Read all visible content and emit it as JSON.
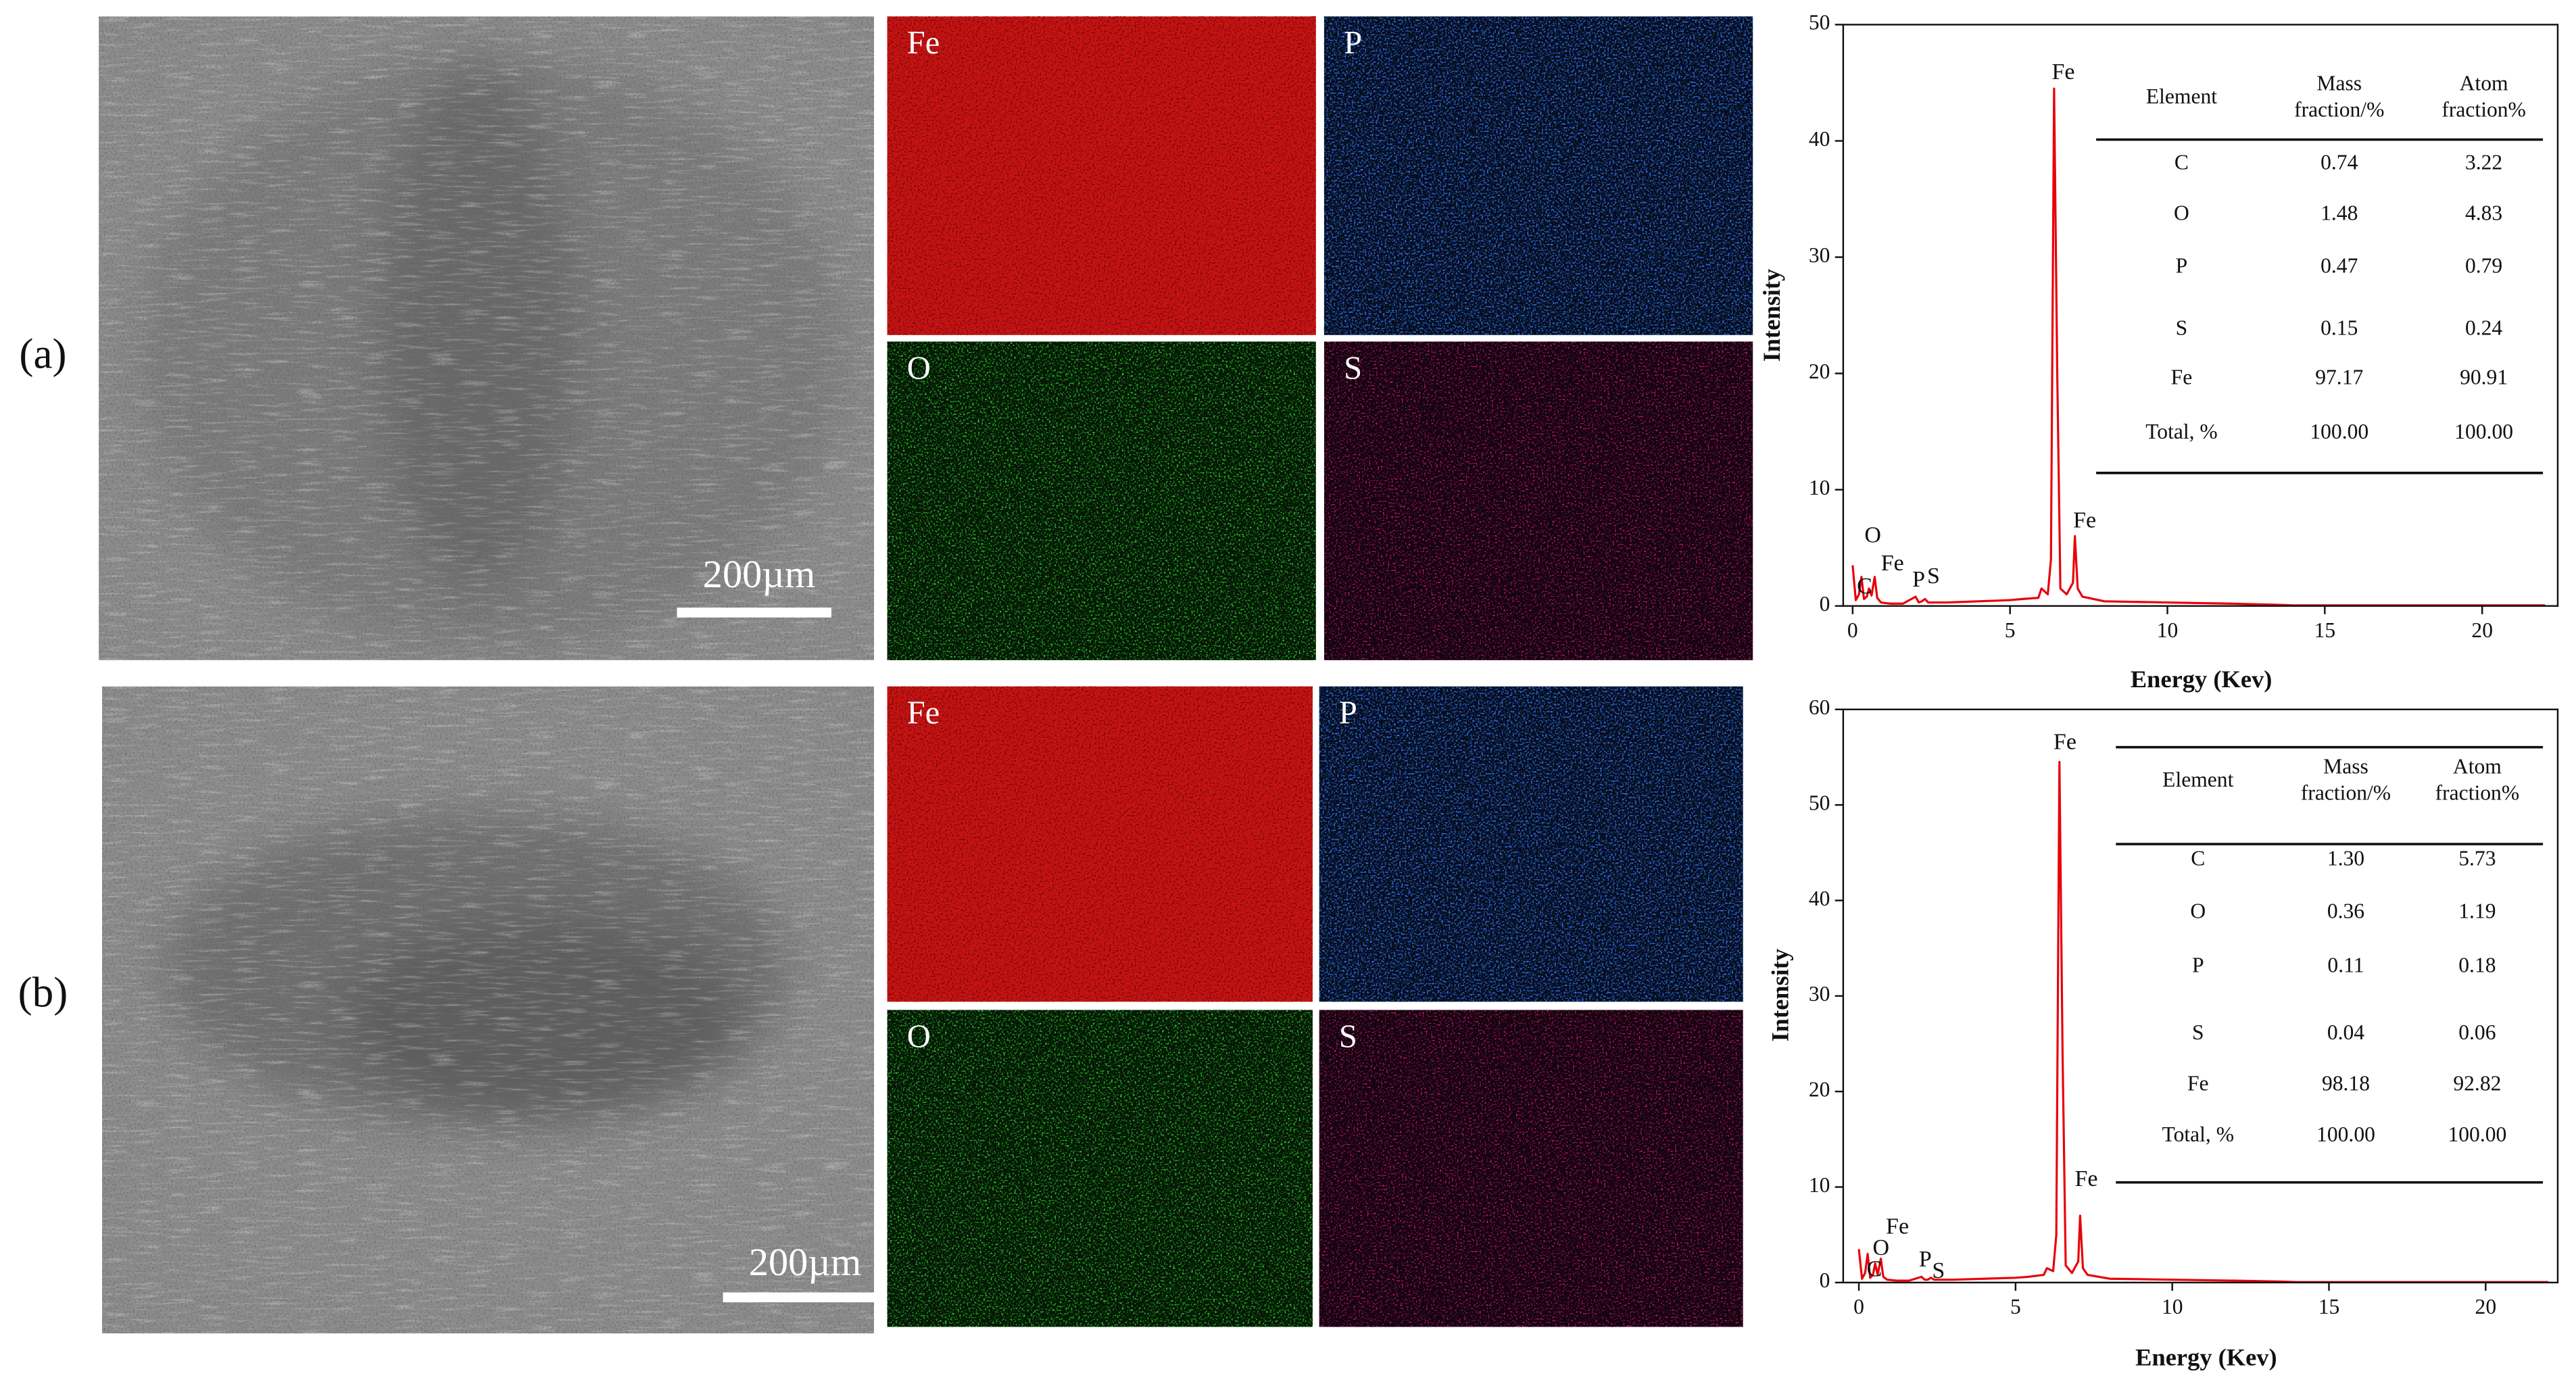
{
  "panels": [
    {
      "label": "(a)",
      "scale_bar": "200µm",
      "maps": [
        "Fe",
        "P",
        "O",
        "S"
      ]
    },
    {
      "label": "(b)",
      "scale_bar": "200µm",
      "maps": [
        "Fe",
        "P",
        "O",
        "S"
      ]
    }
  ],
  "chart_data": [
    {
      "type": "line",
      "x_label": "Energy (Kev)",
      "y_label": "Intensity",
      "xlim": [
        -0.3,
        22.4
      ],
      "ylim": [
        0,
        50
      ],
      "xticks": [
        0,
        5,
        10,
        15,
        20
      ],
      "yticks": [
        0,
        10,
        20,
        30,
        40,
        50
      ],
      "x": [
        0,
        0.1,
        0.2,
        0.28,
        0.36,
        0.45,
        0.52,
        0.6,
        0.7,
        0.78,
        0.9,
        1.2,
        1.6,
        2.0,
        2.1,
        2.2,
        2.3,
        2.4,
        2.6,
        3.0,
        4.0,
        5.0,
        5.4,
        5.9,
        6.0,
        6.2,
        6.3,
        6.4,
        6.5,
        6.6,
        6.8,
        7.0,
        7.06,
        7.15,
        7.3,
        8.0,
        10.0,
        12.0,
        13.5,
        14.0,
        22.0
      ],
      "series": [
        {
          "color": "#e8000b",
          "values": [
            3.5,
            0.5,
            1.0,
            2.5,
            0.6,
            0.8,
            1.5,
            0.9,
            2.5,
            0.7,
            0.3,
            0.2,
            0.2,
            0.8,
            0.3,
            0.4,
            0.6,
            0.3,
            0.3,
            0.3,
            0.4,
            0.5,
            0.6,
            0.7,
            1.5,
            1.0,
            4,
            44.5,
            20,
            1.5,
            1.0,
            2.0,
            6.0,
            1.5,
            0.8,
            0.4,
            0.3,
            0.2,
            0.1,
            0.05,
            0.05
          ]
        }
      ],
      "annotations": [
        "Fe",
        "Fe",
        "O",
        "C",
        "Fe",
        "P",
        "S"
      ],
      "table": {
        "header": [
          "Element",
          [
            "Mass",
            "fraction/%"
          ],
          [
            "Atom",
            "fraction%"
          ]
        ],
        "rows": [
          [
            "C",
            "0.74",
            "3.22"
          ],
          [
            "O",
            "1.48",
            "4.83"
          ],
          [
            "P",
            "0.47",
            "0.79"
          ],
          [
            "S",
            "0.15",
            "0.24"
          ],
          [
            "Fe",
            "97.17",
            "90.91"
          ],
          [
            "Total, %",
            "100.00",
            "100.00"
          ]
        ]
      }
    },
    {
      "type": "line",
      "x_label": "Energy (Kev)",
      "y_label": "Intensity",
      "xlim": [
        -0.5,
        22.3
      ],
      "ylim": [
        0,
        60
      ],
      "xticks": [
        0,
        5,
        10,
        15,
        20
      ],
      "yticks": [
        0,
        10,
        20,
        30,
        40,
        50,
        60
      ],
      "x": [
        0,
        0.1,
        0.2,
        0.28,
        0.36,
        0.45,
        0.52,
        0.6,
        0.7,
        0.78,
        0.9,
        1.2,
        1.6,
        2.0,
        2.1,
        2.2,
        2.3,
        2.4,
        2.6,
        3.0,
        4.0,
        5.0,
        5.4,
        5.9,
        6.0,
        6.2,
        6.3,
        6.4,
        6.5,
        6.6,
        6.8,
        7.0,
        7.06,
        7.15,
        7.3,
        8.0,
        10.0,
        12.0,
        13.5,
        14.0,
        22.0
      ],
      "series": [
        {
          "color": "#e8000b",
          "values": [
            3.5,
            0.4,
            1.0,
            3.0,
            0.5,
            0.8,
            2.0,
            0.8,
            2.5,
            0.6,
            0.3,
            0.2,
            0.2,
            0.6,
            0.3,
            0.3,
            0.5,
            0.3,
            0.3,
            0.3,
            0.4,
            0.5,
            0.6,
            0.8,
            1.5,
            1.2,
            5,
            54.5,
            24,
            1.8,
            1.0,
            2.2,
            7.0,
            1.5,
            0.8,
            0.4,
            0.3,
            0.2,
            0.1,
            0.05,
            0.05
          ]
        }
      ],
      "annotations": [
        "Fe",
        "Fe",
        "Fe",
        "O",
        "C",
        "P",
        "S"
      ],
      "table": {
        "header": [
          "Element",
          [
            "Mass",
            "fraction/%"
          ],
          [
            "Atom",
            "fraction%"
          ]
        ],
        "rows": [
          [
            "C",
            "1.30",
            "5.73"
          ],
          [
            "O",
            "0.36",
            "1.19"
          ],
          [
            "P",
            "0.11",
            "0.18"
          ],
          [
            "S",
            "0.04",
            "0.06"
          ],
          [
            "Fe",
            "98.18",
            "92.82"
          ],
          [
            "Total, %",
            "100.00",
            "100.00"
          ]
        ]
      }
    }
  ]
}
